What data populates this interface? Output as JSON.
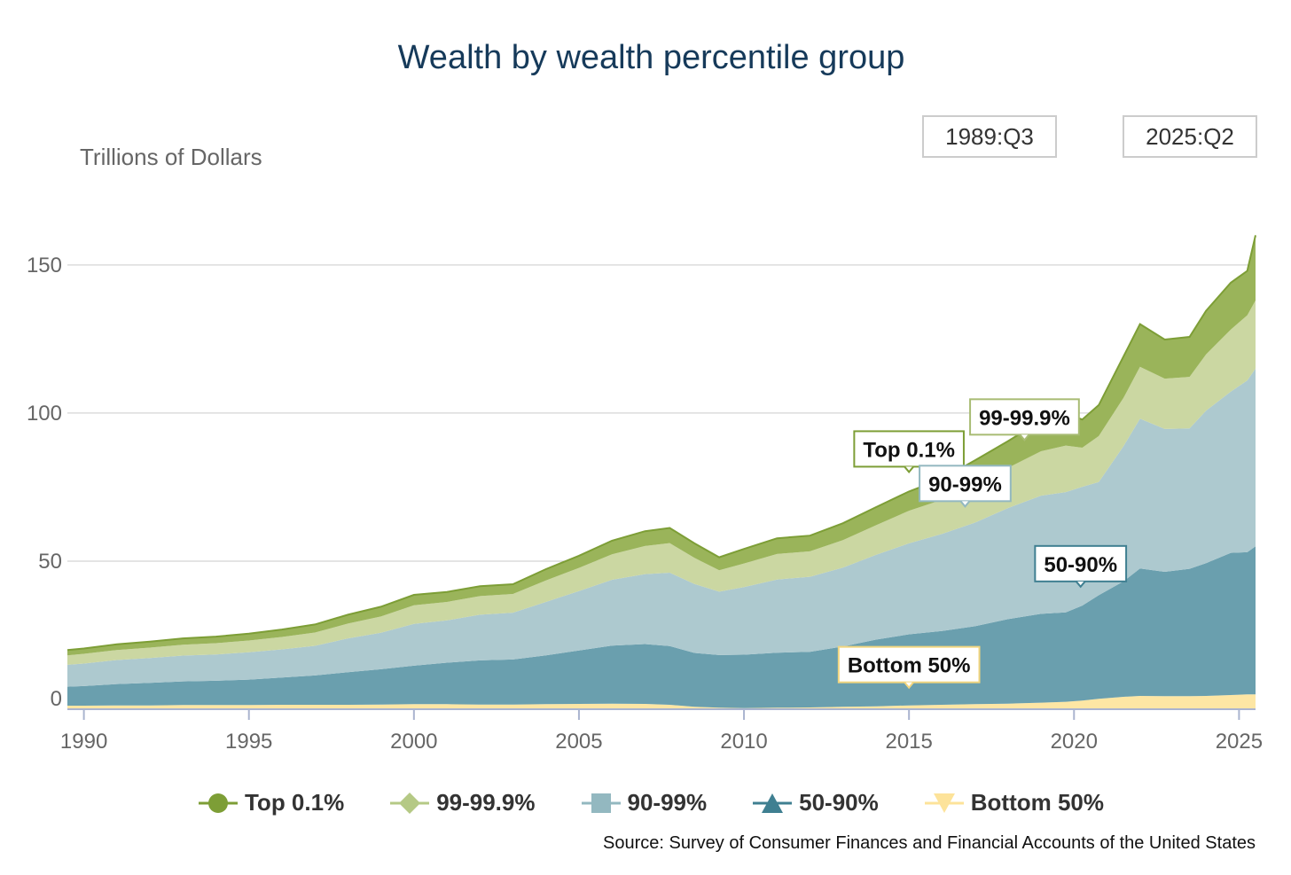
{
  "chart_data": {
    "type": "area",
    "stacked": true,
    "title": "Wealth by wealth percentile group",
    "ylabel": "Trillions of Dollars",
    "xlabel": "",
    "xlim": [
      1989.5,
      2025.5
    ],
    "ylim": [
      0,
      170
    ],
    "x_ticks": [
      1990,
      1995,
      2000,
      2005,
      2010,
      2015,
      2020,
      2025
    ],
    "y_ticks": [
      0,
      50,
      100,
      150
    ],
    "grid": "horizontal",
    "legend_position": "bottom",
    "range_start": "1989:Q3",
    "range_end": "2025:Q2",
    "x": [
      1989.5,
      1990,
      1991,
      1992,
      1993,
      1994,
      1995,
      1996,
      1997,
      1998,
      1999,
      2000,
      2001,
      2002,
      2003,
      2004,
      2005,
      2006,
      2007,
      2007.75,
      2008.5,
      2009.25,
      2010,
      2011,
      2012,
      2013,
      2014,
      2015,
      2016,
      2017,
      2018,
      2019,
      2019.75,
      2020.25,
      2020.75,
      2021.5,
      2022,
      2022.75,
      2023.5,
      2024,
      2024.75,
      2025.25,
      2025.5
    ],
    "series": [
      {
        "name": "Bottom 50%",
        "color": "#fde6a4",
        "values": [
          1.2,
          1.2,
          1.3,
          1.3,
          1.4,
          1.4,
          1.4,
          1.5,
          1.5,
          1.5,
          1.6,
          1.7,
          1.7,
          1.6,
          1.6,
          1.7,
          1.8,
          1.9,
          1.8,
          1.5,
          0.8,
          0.5,
          0.4,
          0.5,
          0.6,
          0.8,
          1.0,
          1.3,
          1.5,
          1.7,
          1.9,
          2.2,
          2.5,
          2.9,
          3.5,
          4.2,
          4.5,
          4.4,
          4.4,
          4.5,
          4.8,
          5.0,
          5.0
        ]
      },
      {
        "name": "50-90%",
        "color": "#6a9fae",
        "values": [
          6.4,
          6.6,
          7.2,
          7.6,
          8.0,
          8.2,
          8.6,
          9.2,
          9.9,
          11.0,
          11.9,
          13.0,
          14.0,
          14.9,
          15.2,
          16.5,
          18.0,
          19.6,
          20.2,
          19.8,
          18.2,
          17.8,
          18.0,
          18.6,
          18.8,
          20.4,
          22.5,
          24.0,
          24.9,
          26.3,
          28.5,
          30.0,
          30.2,
          32.1,
          35.0,
          39.0,
          43.0,
          42.0,
          43.0,
          44.8,
          48.0,
          48.0,
          50.0
        ]
      },
      {
        "name": "90-99%",
        "color": "#adc9cf",
        "values": [
          7.4,
          7.6,
          8.1,
          8.4,
          8.7,
          8.9,
          9.2,
          9.5,
          10.0,
          11.4,
          12.3,
          14.1,
          14.3,
          15.4,
          15.8,
          18.0,
          20.1,
          22.2,
          23.6,
          24.8,
          23.3,
          21.4,
          22.8,
          24.7,
          25.3,
          26.6,
          28.6,
          30.7,
          32.8,
          35.0,
          37.5,
          39.9,
          40.6,
          40.1,
          38.2,
          45.6,
          50.6,
          48.2,
          47.4,
          51.5,
          54.4,
          58.0,
          60.0
        ]
      },
      {
        "name": "99-99.9%",
        "color": "#cbd7a2",
        "values": [
          3.2,
          3.3,
          3.4,
          3.5,
          3.7,
          3.8,
          4.0,
          4.2,
          4.5,
          5.0,
          5.5,
          6.3,
          6.2,
          6.3,
          6.3,
          7.3,
          7.8,
          8.6,
          9.5,
          10.0,
          8.8,
          7.2,
          8.0,
          8.6,
          8.6,
          9.3,
          10.0,
          11.0,
          11.5,
          13.0,
          13.6,
          15.0,
          15.7,
          13.2,
          15.5,
          16.3,
          17.5,
          17.0,
          17.4,
          19.0,
          21.0,
          22.0,
          23.0
        ]
      },
      {
        "name": "Top 0.1%",
        "color": "#9ab45a",
        "values": [
          1.8,
          1.8,
          1.9,
          2.0,
          2.1,
          2.2,
          2.3,
          2.5,
          2.7,
          3.0,
          3.3,
          3.5,
          3.4,
          3.3,
          3.3,
          3.8,
          4.1,
          4.6,
          5.0,
          5.1,
          4.9,
          4.4,
          4.9,
          5.3,
          5.3,
          5.7,
          6.1,
          6.5,
          7.1,
          8.0,
          9.0,
          10.2,
          10.8,
          9.5,
          10.5,
          14.0,
          14.4,
          13.2,
          13.5,
          14.7,
          15.8,
          15.0,
          22.0
        ]
      }
    ],
    "annotations": [
      {
        "text": "Top 0.1%",
        "x": 2015,
        "series": "Top 0.1%"
      },
      {
        "text": "99-99.9%",
        "x": 2018.5,
        "series": "99-99.9%"
      },
      {
        "text": "90-99%",
        "x": 2016.7,
        "series": "90-99%"
      },
      {
        "text": "50-90%",
        "x": 2020.2,
        "series": "50-90%"
      },
      {
        "text": "Bottom 50%",
        "x": 2015,
        "series": "Bottom 50%"
      }
    ]
  },
  "legend": [
    {
      "label": "Top 0.1%",
      "marker": "circle",
      "color": "#7d9e36"
    },
    {
      "label": "99-99.9%",
      "marker": "diamond",
      "color": "#b5c985"
    },
    {
      "label": "90-99%",
      "marker": "square",
      "color": "#93b8c0"
    },
    {
      "label": "50-90%",
      "marker": "triangle-up",
      "color": "#3f7f91"
    },
    {
      "label": "Bottom 50%",
      "marker": "triangle-down",
      "color": "#fde39a"
    }
  ],
  "source": "Source: Survey of Consumer Finances and Financial Accounts of the United States"
}
